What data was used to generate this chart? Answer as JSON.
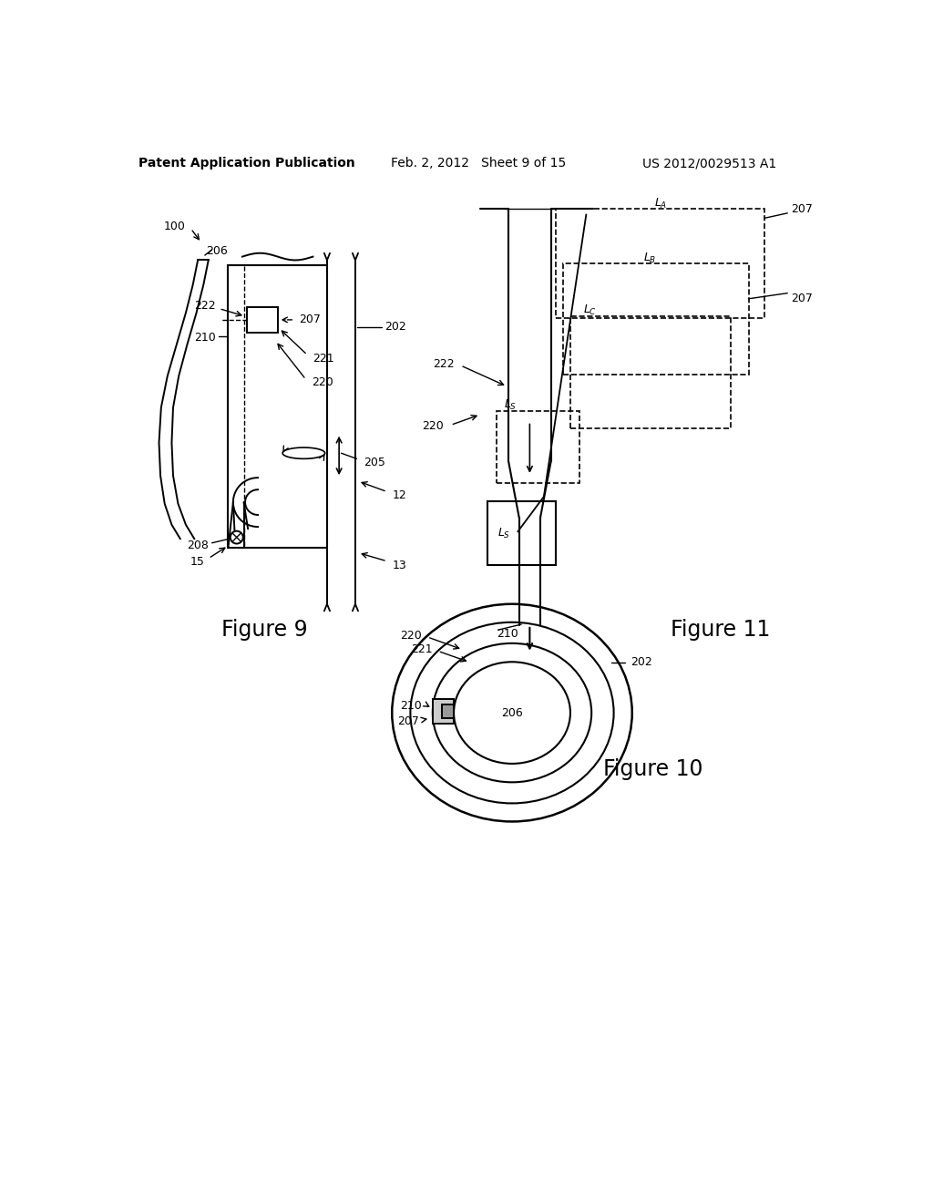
{
  "bg_color": "#ffffff",
  "header_left": "Patent Application Publication",
  "header_mid": "Feb. 2, 2012   Sheet 9 of 15",
  "header_right": "US 2012/0029513 A1",
  "line_color": "#000000"
}
